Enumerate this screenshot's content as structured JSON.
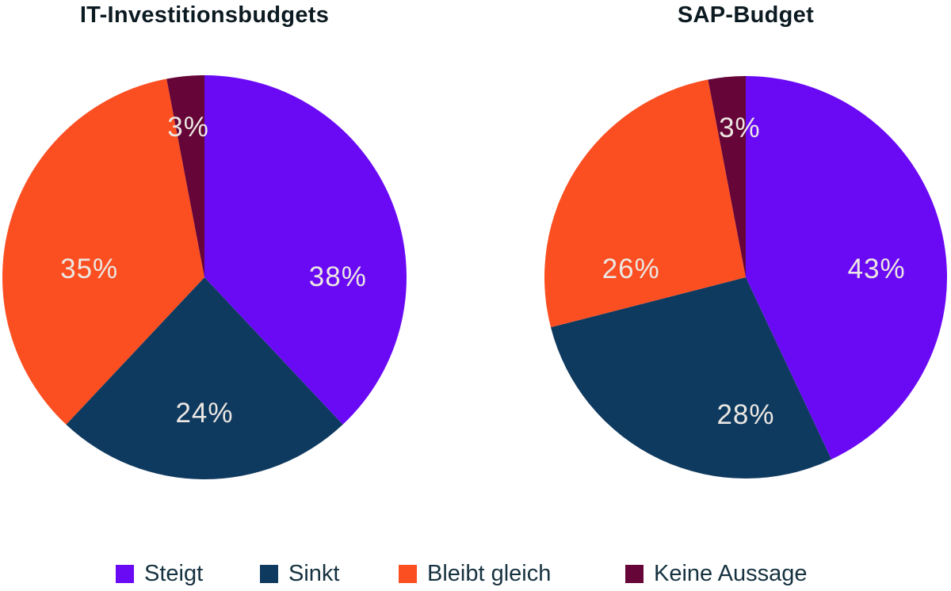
{
  "chart_data": [
    {
      "type": "pie",
      "title": "IT-Investitionsbudgets",
      "categories": [
        "Steigt",
        "Sinkt",
        "Bleibt gleich",
        "Keine Aussage"
      ],
      "values": [
        38,
        24,
        35,
        3
      ],
      "unit": "%",
      "colors": [
        "#6a0af5",
        "#0f3a60",
        "#fb4f22",
        "#650538"
      ],
      "start_angle_deg": 0,
      "direction": "clockwise",
      "legend_position": "bottom",
      "slices": [
        {
          "name": "Steigt",
          "value": 38,
          "label": "38%",
          "pos": [
            0.66,
            0.0
          ]
        },
        {
          "name": "Sinkt",
          "value": 24,
          "label": "24%",
          "pos": [
            0.0,
            0.675
          ]
        },
        {
          "name": "Bleibt gleich",
          "value": 35,
          "label": "35%",
          "pos": [
            -0.57,
            -0.04
          ]
        },
        {
          "name": "Keine Aussage",
          "value": 3,
          "label": "3%",
          "pos": [
            -0.08,
            -0.74
          ]
        }
      ]
    },
    {
      "type": "pie",
      "title": "SAP-Budget",
      "categories": [
        "Steigt",
        "Sinkt",
        "Bleibt gleich",
        "Keine Aussage"
      ],
      "values": [
        43,
        28,
        26,
        3
      ],
      "unit": "%",
      "colors": [
        "#6a0af5",
        "#0f3a60",
        "#fb4f22",
        "#650538"
      ],
      "start_angle_deg": 0,
      "direction": "clockwise",
      "legend_position": "bottom",
      "slices": [
        {
          "name": "Steigt",
          "value": 43,
          "label": "43%",
          "pos": [
            0.65,
            -0.04
          ]
        },
        {
          "name": "Sinkt",
          "value": 28,
          "label": "28%",
          "pos": [
            0.0,
            0.685
          ]
        },
        {
          "name": "Bleibt gleich",
          "value": 26,
          "label": "26%",
          "pos": [
            -0.57,
            -0.04
          ]
        },
        {
          "name": "Keine Aussage",
          "value": 3,
          "label": "3%",
          "pos": [
            -0.03,
            -0.74
          ]
        }
      ]
    }
  ],
  "legend": {
    "items": [
      {
        "label": "Steigt",
        "color": "#6a0af5"
      },
      {
        "label": "Sinkt",
        "color": "#0f3a60"
      },
      {
        "label": "Bleibt gleich",
        "color": "#fb4f22"
      },
      {
        "label": "Keine Aussage",
        "color": "#650538"
      }
    ]
  },
  "palette": {
    "background": "#ffffff",
    "title_text": "#0c1a21",
    "legend_text": "#163240",
    "slice_label_text": "#ece7e2"
  }
}
